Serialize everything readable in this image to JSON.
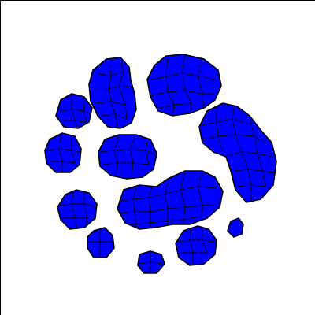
{
  "image": {
    "background_color": "#ffffff",
    "border_color": "#000000",
    "cell_fill_color": "#0000ff",
    "cell_edge_color": "#000000"
  },
  "cell_clusters": [
    {
      "label": "cluster-top-center-left",
      "cells_estimate": 14
    },
    {
      "label": "cluster-top-right",
      "cells_estimate": 24
    },
    {
      "label": "cluster-left-upper-small",
      "cells_estimate": 8
    },
    {
      "label": "cluster-right-elongated",
      "cells_estimate": 20
    },
    {
      "label": "cluster-left-middle-small",
      "cells_estimate": 8
    },
    {
      "label": "cluster-center",
      "cells_estimate": 16
    },
    {
      "label": "cluster-bottom-center-large",
      "cells_estimate": 30
    },
    {
      "label": "cluster-left-lower-small",
      "cells_estimate": 9
    },
    {
      "label": "cluster-bottom-left-small",
      "cells_estimate": 4
    },
    {
      "label": "cluster-bottom-right-medium",
      "cells_estimate": 8
    },
    {
      "label": "cluster-right-tiny",
      "cells_estimate": 1
    },
    {
      "label": "cluster-bottom-tiny",
      "cells_estimate": 3
    }
  ]
}
